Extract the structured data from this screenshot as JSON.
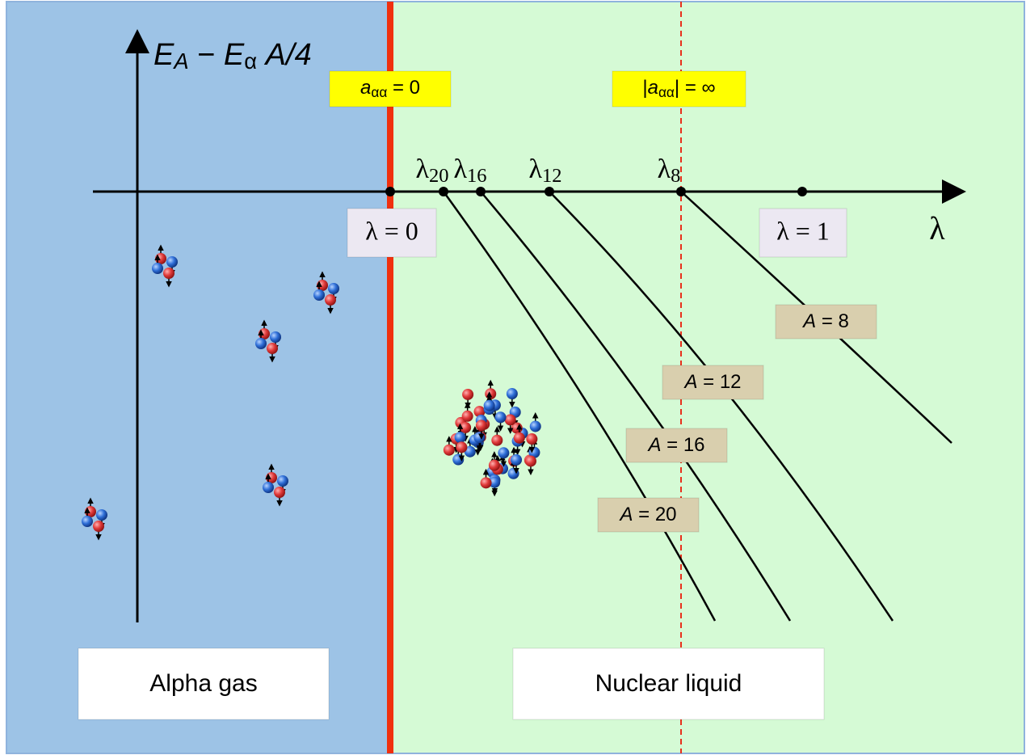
{
  "y_axis_label": {
    "segments": [
      {
        "text": "E",
        "style": "italic"
      },
      {
        "text": "A",
        "style": "italic-sub"
      },
      {
        "text": " − "
      },
      {
        "text": "E",
        "style": "italic"
      },
      {
        "text": "α",
        "style": "sub"
      },
      {
        "text": " A/4",
        "style": "italic"
      }
    ]
  },
  "x_axis_label": "λ",
  "scattering_length_markers": [
    {
      "segments": [
        {
          "text": "a",
          "style": "italic"
        },
        {
          "text": "αα",
          "style": "sub"
        },
        {
          "text": " = 0"
        }
      ]
    },
    {
      "segments": [
        {
          "text": "|"
        },
        {
          "text": "a",
          "style": "italic"
        },
        {
          "text": "αα",
          "style": "sub"
        },
        {
          "text": "| = ∞"
        }
      ]
    }
  ],
  "lambda_points": [
    {
      "segments": [
        {
          "text": "λ"
        },
        {
          "text": "20",
          "style": "sub"
        }
      ]
    },
    {
      "segments": [
        {
          "text": "λ"
        },
        {
          "text": "16",
          "style": "sub"
        }
      ]
    },
    {
      "segments": [
        {
          "text": "λ"
        },
        {
          "text": "12",
          "style": "sub"
        }
      ]
    },
    {
      "segments": [
        {
          "text": "λ"
        },
        {
          "text": "8",
          "style": "sub"
        }
      ]
    }
  ],
  "lambda_labels": [
    "λ = 0",
    "λ = 1"
  ],
  "curve_labels": [
    {
      "segments": [
        {
          "text": "A",
          "style": "italic"
        },
        {
          "text": " = 8"
        }
      ]
    },
    {
      "segments": [
        {
          "text": "A",
          "style": "italic"
        },
        {
          "text": " = 12"
        }
      ]
    },
    {
      "segments": [
        {
          "text": "A",
          "style": "italic"
        },
        {
          "text": " = 16"
        }
      ]
    },
    {
      "segments": [
        {
          "text": "A",
          "style": "italic"
        },
        {
          "text": " = 20"
        }
      ]
    }
  ],
  "regions": [
    "Alpha gas",
    "Nuclear liquid"
  ]
}
